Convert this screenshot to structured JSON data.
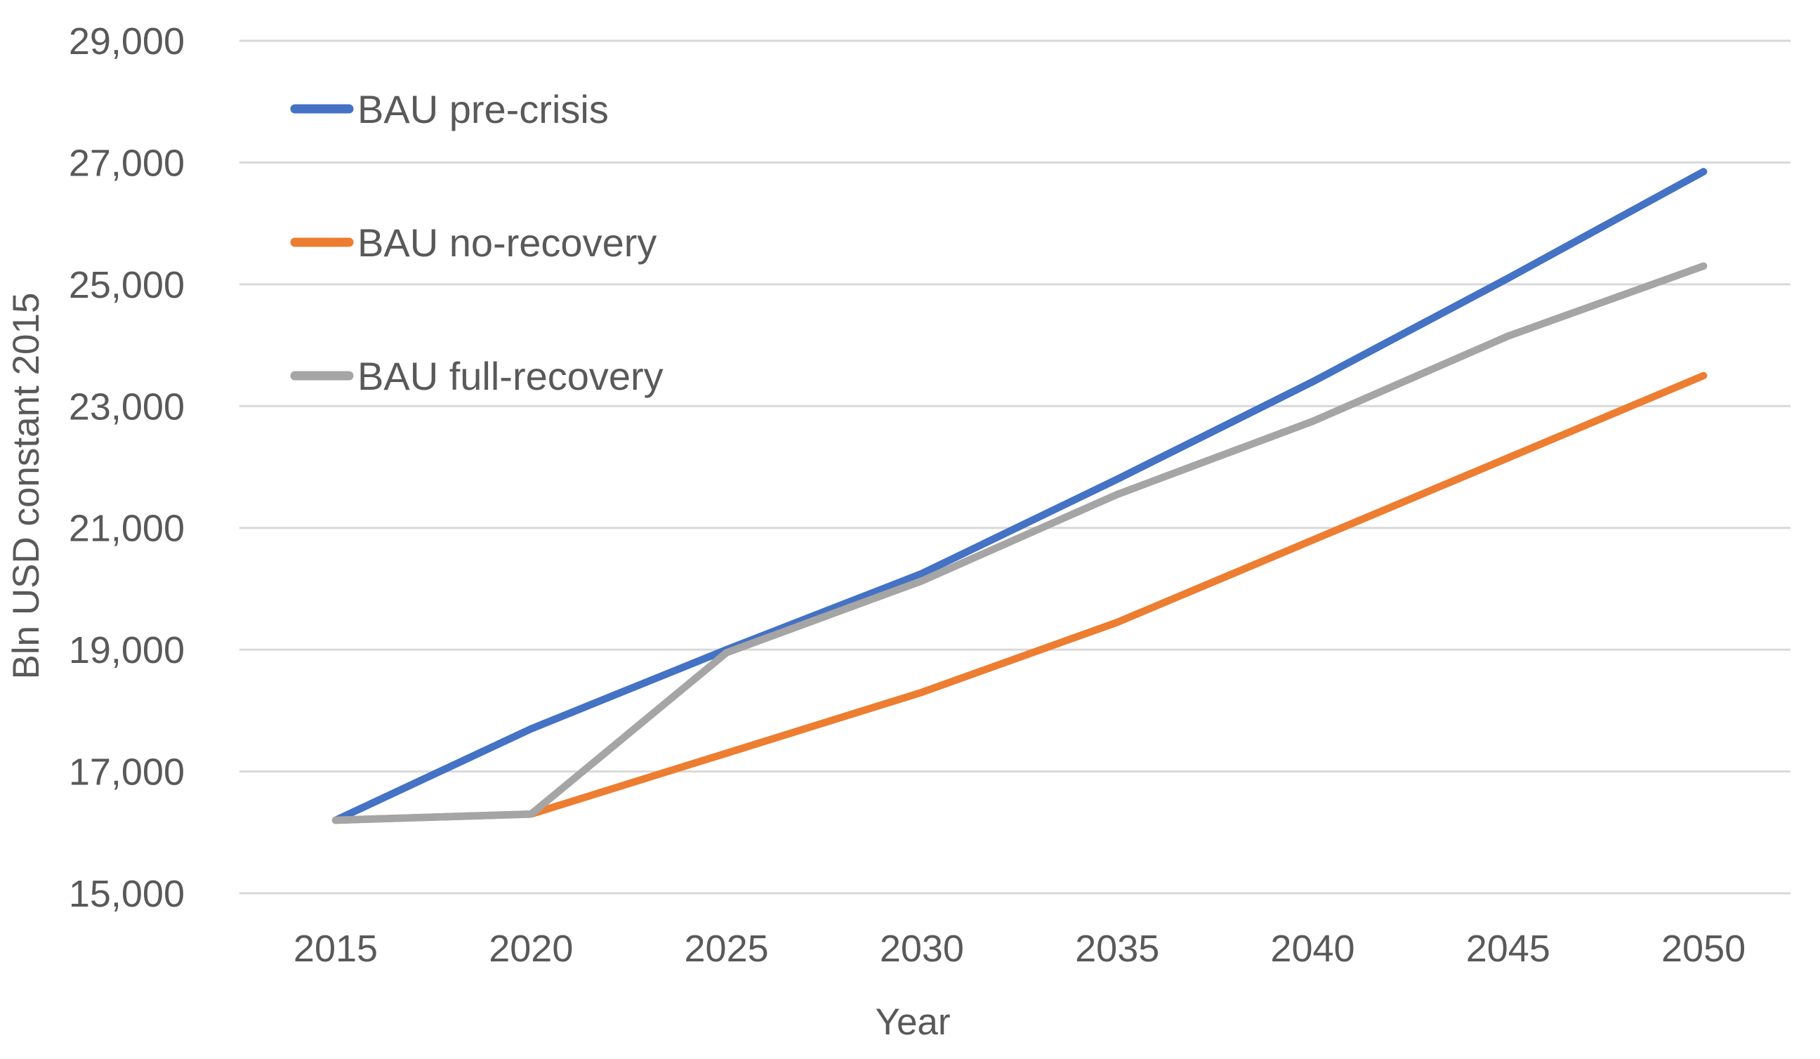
{
  "chart_data": {
    "type": "line",
    "title": "",
    "xlabel": "Year",
    "ylabel": "Bln USD constant 2015",
    "x": [
      2015,
      2020,
      2025,
      2030,
      2035,
      2040,
      2045,
      2050
    ],
    "x_tick_labels": [
      "2015",
      "2020",
      "2025",
      "2030",
      "2035",
      "2040",
      "2045",
      "2050"
    ],
    "y_ticks": [
      15000,
      17000,
      19000,
      21000,
      23000,
      25000,
      27000,
      29000
    ],
    "y_tick_labels": [
      "15,000",
      "17,000",
      "19,000",
      "21,000",
      "23,000",
      "25,000",
      "27,000",
      "29,000"
    ],
    "ylim": [
      15000,
      29000
    ],
    "grid": true,
    "legend_position": "inside-top-left",
    "series": [
      {
        "name": "BAU pre-crisis",
        "color": "#4472C4",
        "values": [
          16200,
          17700,
          19000,
          20250,
          21800,
          23400,
          25100,
          26850
        ]
      },
      {
        "name": "BAU no-recovery",
        "color": "#ED7D31",
        "values": [
          16200,
          16300,
          17300,
          18300,
          19450,
          20800,
          22150,
          23500
        ]
      },
      {
        "name": "BAU full-recovery",
        "color": "#A5A5A5",
        "values": [
          16200,
          16300,
          18950,
          20130,
          21550,
          22750,
          24150,
          25300
        ]
      }
    ],
    "colors": {
      "gridline": "#D9D9D9",
      "axis_text": "#595959",
      "background": "#FFFFFF"
    }
  }
}
